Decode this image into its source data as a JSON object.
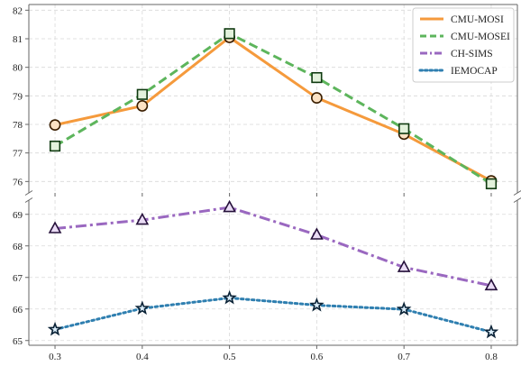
{
  "chart_data": {
    "type": "line",
    "title": "",
    "xlabel": "",
    "ylabel": "",
    "x": [
      0.3,
      0.4,
      0.5,
      0.6,
      0.7,
      0.8
    ],
    "x_tick_labels": [
      "0.3",
      "0.4",
      "0.5",
      "0.6",
      "0.7",
      "0.8"
    ],
    "broken_y_axis": true,
    "grid": true,
    "legend_position": "top-right",
    "panels": [
      {
        "id": "upper",
        "ylim": [
          75.6,
          82.2
        ],
        "y_ticks": [
          76,
          77,
          78,
          79,
          80,
          81,
          82
        ],
        "y_tick_labels": [
          "76",
          "77",
          "78",
          "79",
          "80",
          "81",
          "82"
        ],
        "series": [
          {
            "name": "CMU-MOSI",
            "values": [
              77.98,
              78.65,
              81.05,
              78.93,
              77.66,
              76.02
            ],
            "color": "#f59a3c",
            "dash": "solid",
            "marker": "circle",
            "marker_fill": "#fce2c4",
            "marker_stroke": "#3a1e00"
          },
          {
            "name": "CMU-MOSEI",
            "values": [
              77.24,
              79.05,
              81.18,
              79.64,
              77.85,
              75.92
            ],
            "color": "#5db55c",
            "dash": "dashed",
            "marker": "square",
            "marker_fill": "#e3f2dc",
            "marker_stroke": "#0f3a10"
          }
        ]
      },
      {
        "id": "lower",
        "ylim": [
          64.85,
          69.45
        ],
        "y_ticks": [
          65,
          66,
          67,
          68,
          69
        ],
        "y_tick_labels": [
          "65",
          "66",
          "67",
          "68",
          "69"
        ],
        "series": [
          {
            "name": "CH-SIMS",
            "values": [
              68.55,
              68.82,
              69.22,
              68.35,
              67.32,
              66.74
            ],
            "color": "#9a68c0",
            "dash": "dashdot",
            "marker": "triangle",
            "marker_fill": "#eadcf5",
            "marker_stroke": "#25103a"
          },
          {
            "name": "IEMOCAP",
            "values": [
              65.35,
              66.02,
              66.35,
              66.12,
              65.99,
              65.27
            ],
            "color": "#2f7fb0",
            "dash": "dotted",
            "marker": "star",
            "marker_fill": "#dbeefb",
            "marker_stroke": "#0a2236"
          }
        ]
      }
    ],
    "legend": [
      {
        "label": "CMU-MOSI",
        "color": "#f59a3c",
        "dash": "solid"
      },
      {
        "label": "CMU-MOSEI",
        "color": "#5db55c",
        "dash": "dashed"
      },
      {
        "label": "CH-SIMS",
        "color": "#9a68c0",
        "dash": "dashdot"
      },
      {
        "label": "IEMOCAP",
        "color": "#2f7fb0",
        "dash": "dotted"
      }
    ],
    "grid_color": "#d9d9d9",
    "axis_color": "#666666"
  }
}
